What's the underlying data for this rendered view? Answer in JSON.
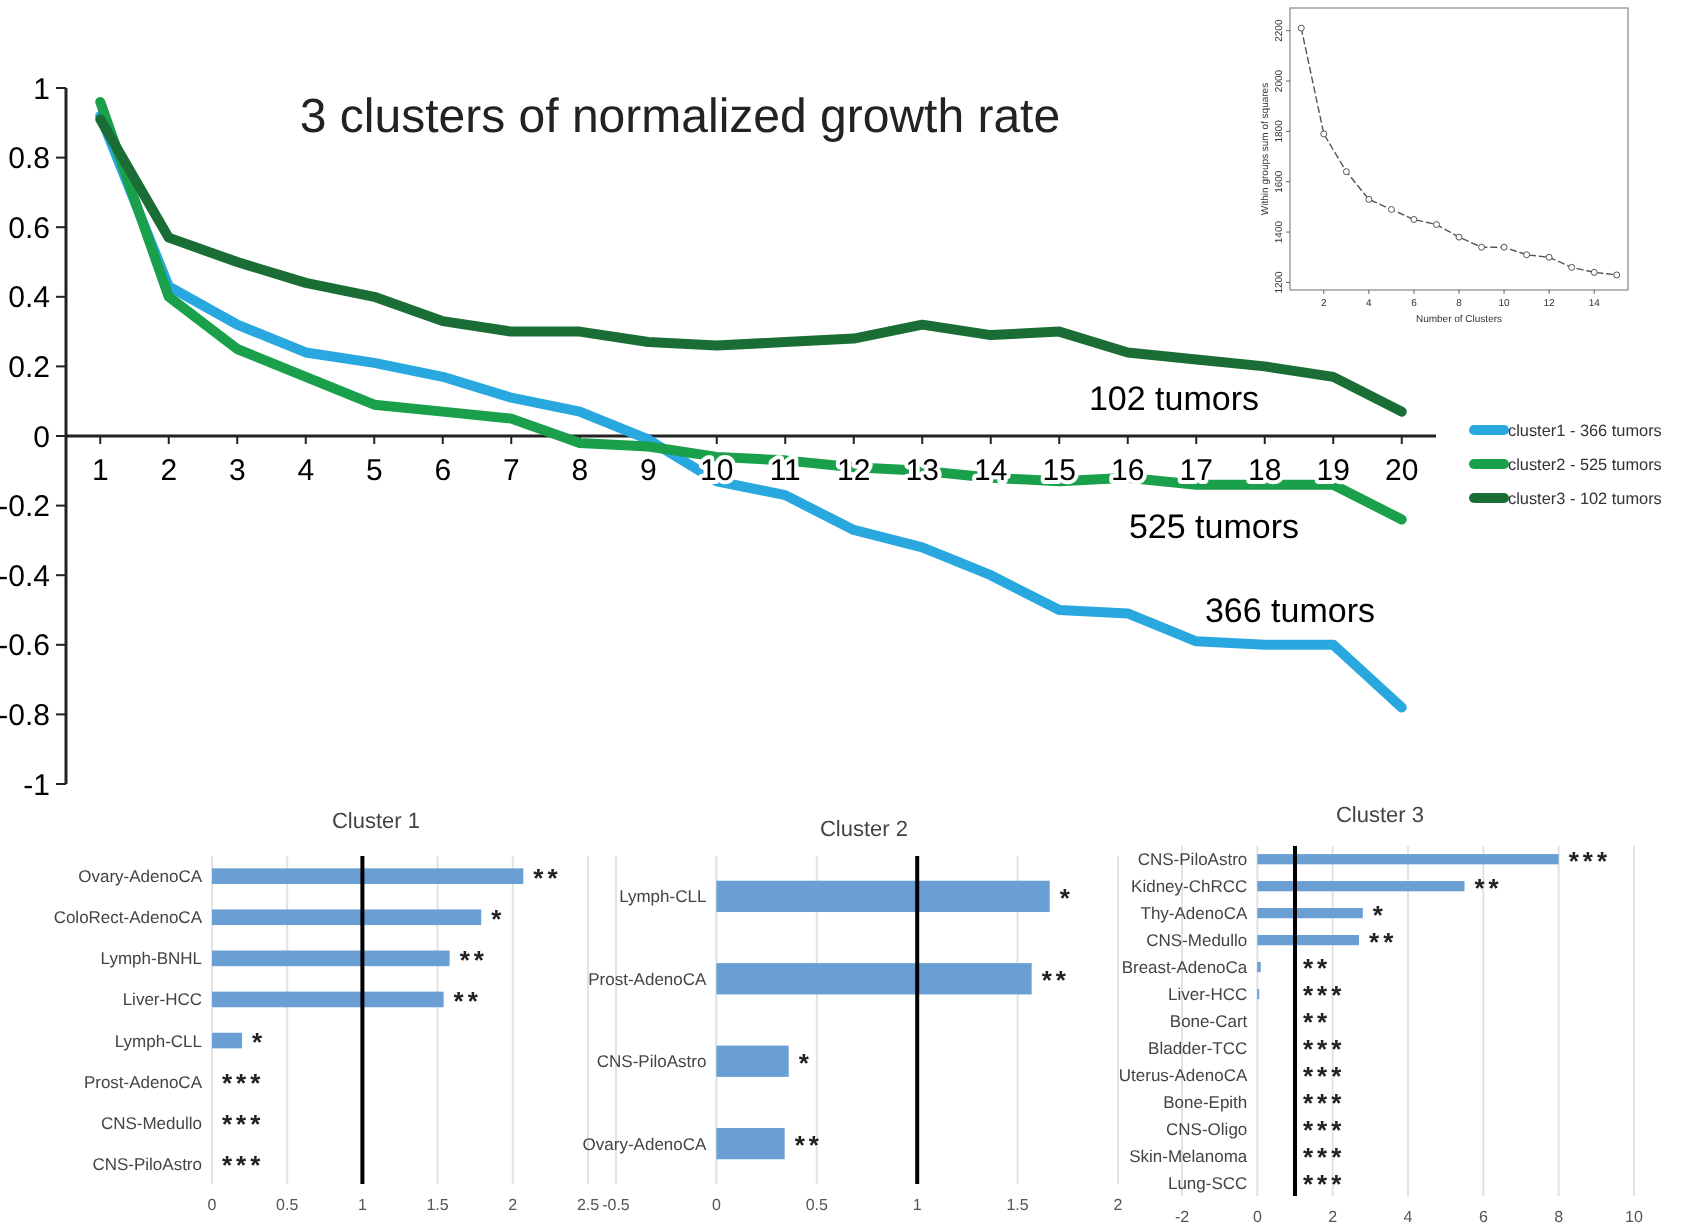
{
  "chart_data": [
    {
      "type": "line",
      "title": "3 clusters of normalized growth rate",
      "x": [
        1,
        2,
        3,
        4,
        5,
        6,
        7,
        8,
        9,
        10,
        11,
        12,
        13,
        14,
        15,
        16,
        17,
        18,
        19,
        20
      ],
      "xlim": [
        0.5,
        20.5
      ],
      "xticks": [
        1,
        2,
        3,
        4,
        5,
        6,
        7,
        8,
        9,
        10,
        11,
        12,
        13,
        14,
        15,
        16,
        17,
        18,
        19,
        20
      ],
      "ylim": [
        -1,
        1
      ],
      "yticks": [
        -1,
        -0.8,
        -0.6,
        -0.4,
        -0.2,
        0,
        0.2,
        0.4,
        0.6,
        0.8,
        1
      ],
      "legend": "right",
      "series": [
        {
          "name": "cluster1 - 366 tumors",
          "color": "#29a8e0",
          "values": [
            0.92,
            0.43,
            0.32,
            0.24,
            0.21,
            0.17,
            0.11,
            0.07,
            -0.01,
            -0.13,
            -0.17,
            -0.27,
            -0.32,
            -0.4,
            -0.5,
            -0.51,
            -0.59,
            -0.6,
            -0.6,
            -0.78
          ]
        },
        {
          "name": "cluster2 - 525 tumors",
          "color": "#1aa04a",
          "values": [
            0.96,
            0.4,
            0.25,
            0.17,
            0.09,
            0.07,
            0.05,
            -0.02,
            -0.03,
            -0.06,
            -0.07,
            -0.09,
            -0.1,
            -0.12,
            -0.13,
            -0.12,
            -0.14,
            -0.14,
            -0.14,
            -0.24
          ]
        },
        {
          "name": "cluster3 - 102 tumors",
          "color": "#1a6e35",
          "values": [
            0.91,
            0.57,
            0.5,
            0.44,
            0.4,
            0.33,
            0.3,
            0.3,
            0.27,
            0.26,
            0.27,
            0.28,
            0.32,
            0.29,
            0.3,
            0.24,
            0.22,
            0.2,
            0.17,
            0.07
          ]
        }
      ],
      "annotations": [
        "102 tumors",
        "525 tumors",
        "366 tumors"
      ]
    },
    {
      "type": "line",
      "x": [
        1,
        2,
        3,
        4,
        5,
        6,
        7,
        8,
        9,
        10,
        11,
        12,
        13,
        14,
        15
      ],
      "xlim": [
        0.5,
        15.5
      ],
      "xticks": [
        2,
        4,
        6,
        8,
        10,
        12,
        14
      ],
      "ylim": [
        1170,
        2290
      ],
      "yticks": [
        1200,
        1400,
        1600,
        1800,
        2000,
        2200
      ],
      "xlabel": "Number of Clusters",
      "ylabel": "Within groups sum of squares",
      "marker": "circle",
      "line_style": "dashed",
      "series": [
        {
          "color": "#555555",
          "values": [
            2210,
            1790,
            1640,
            1530,
            1490,
            1450,
            1430,
            1380,
            1340,
            1340,
            1310,
            1300,
            1260,
            1240,
            1230
          ]
        }
      ]
    },
    {
      "type": "bar",
      "orientation": "horizontal",
      "title": "Cluster 1",
      "categories": [
        "Ovary-AdenoCA",
        "ColoRect-AdenoCA",
        "Lymph-BNHL",
        "Liver-HCC",
        "Lymph-CLL",
        "Prost-AdenoCA",
        "CNS-Medullo",
        "CNS-PiloAstro"
      ],
      "values": [
        2.07,
        1.79,
        1.58,
        1.54,
        0.2,
        0,
        0,
        0
      ],
      "color": "#6a9fd4",
      "xlim": [
        0,
        2.5
      ],
      "xticks": [
        0,
        0.5,
        1,
        1.5,
        2,
        2.5
      ],
      "grid": "x",
      "ref_lines": [
        {
          "axis": "x",
          "value": 1,
          "color": "#000000"
        }
      ],
      "value_labels": [
        "**",
        "*",
        "**",
        "**",
        "*",
        "***",
        "***",
        "***"
      ]
    },
    {
      "type": "bar",
      "orientation": "horizontal",
      "title": "Cluster 2",
      "categories": [
        "Lymph-CLL",
        "Prost-AdenoCA",
        "CNS-PiloAstro",
        "Ovary-AdenoCA"
      ],
      "values": [
        1.66,
        1.57,
        0.36,
        0.34
      ],
      "color": "#6a9fd4",
      "xlim": [
        -0.5,
        2
      ],
      "xticks": [
        -0.5,
        0,
        0.5,
        1,
        1.5,
        2
      ],
      "grid": "x",
      "ref_lines": [
        {
          "axis": "x",
          "value": 1,
          "color": "#000000"
        }
      ],
      "value_labels": [
        "*",
        "**",
        "*",
        "**"
      ]
    },
    {
      "type": "bar",
      "orientation": "horizontal",
      "title": "Cluster 3",
      "categories": [
        "CNS-PiloAstro",
        "Kidney-ChRCC",
        "Thy-AdenoCA",
        "CNS-Medullo",
        "Breast-AdenoCa",
        "Liver-HCC",
        "Bone-Cart",
        "Bladder-TCC",
        "Uterus-AdenoCA",
        "Bone-Epith",
        "CNS-Oligo",
        "Skin-Melanoma",
        "Lung-SCC"
      ],
      "values": [
        8.0,
        5.5,
        2.8,
        2.7,
        0.09,
        0.05,
        0,
        0,
        0,
        0,
        0,
        0,
        0
      ],
      "color": "#6a9fd4",
      "xlim": [
        -2,
        10
      ],
      "xticks": [
        -2,
        0,
        2,
        4,
        6,
        8,
        10
      ],
      "grid": "x",
      "ref_lines": [
        {
          "axis": "x",
          "value": 1,
          "color": "#000000"
        }
      ],
      "value_labels": [
        "***",
        "**",
        "*",
        "**",
        "**",
        "***",
        "**",
        "***",
        "***",
        "***",
        "***",
        "***",
        "***"
      ]
    }
  ]
}
